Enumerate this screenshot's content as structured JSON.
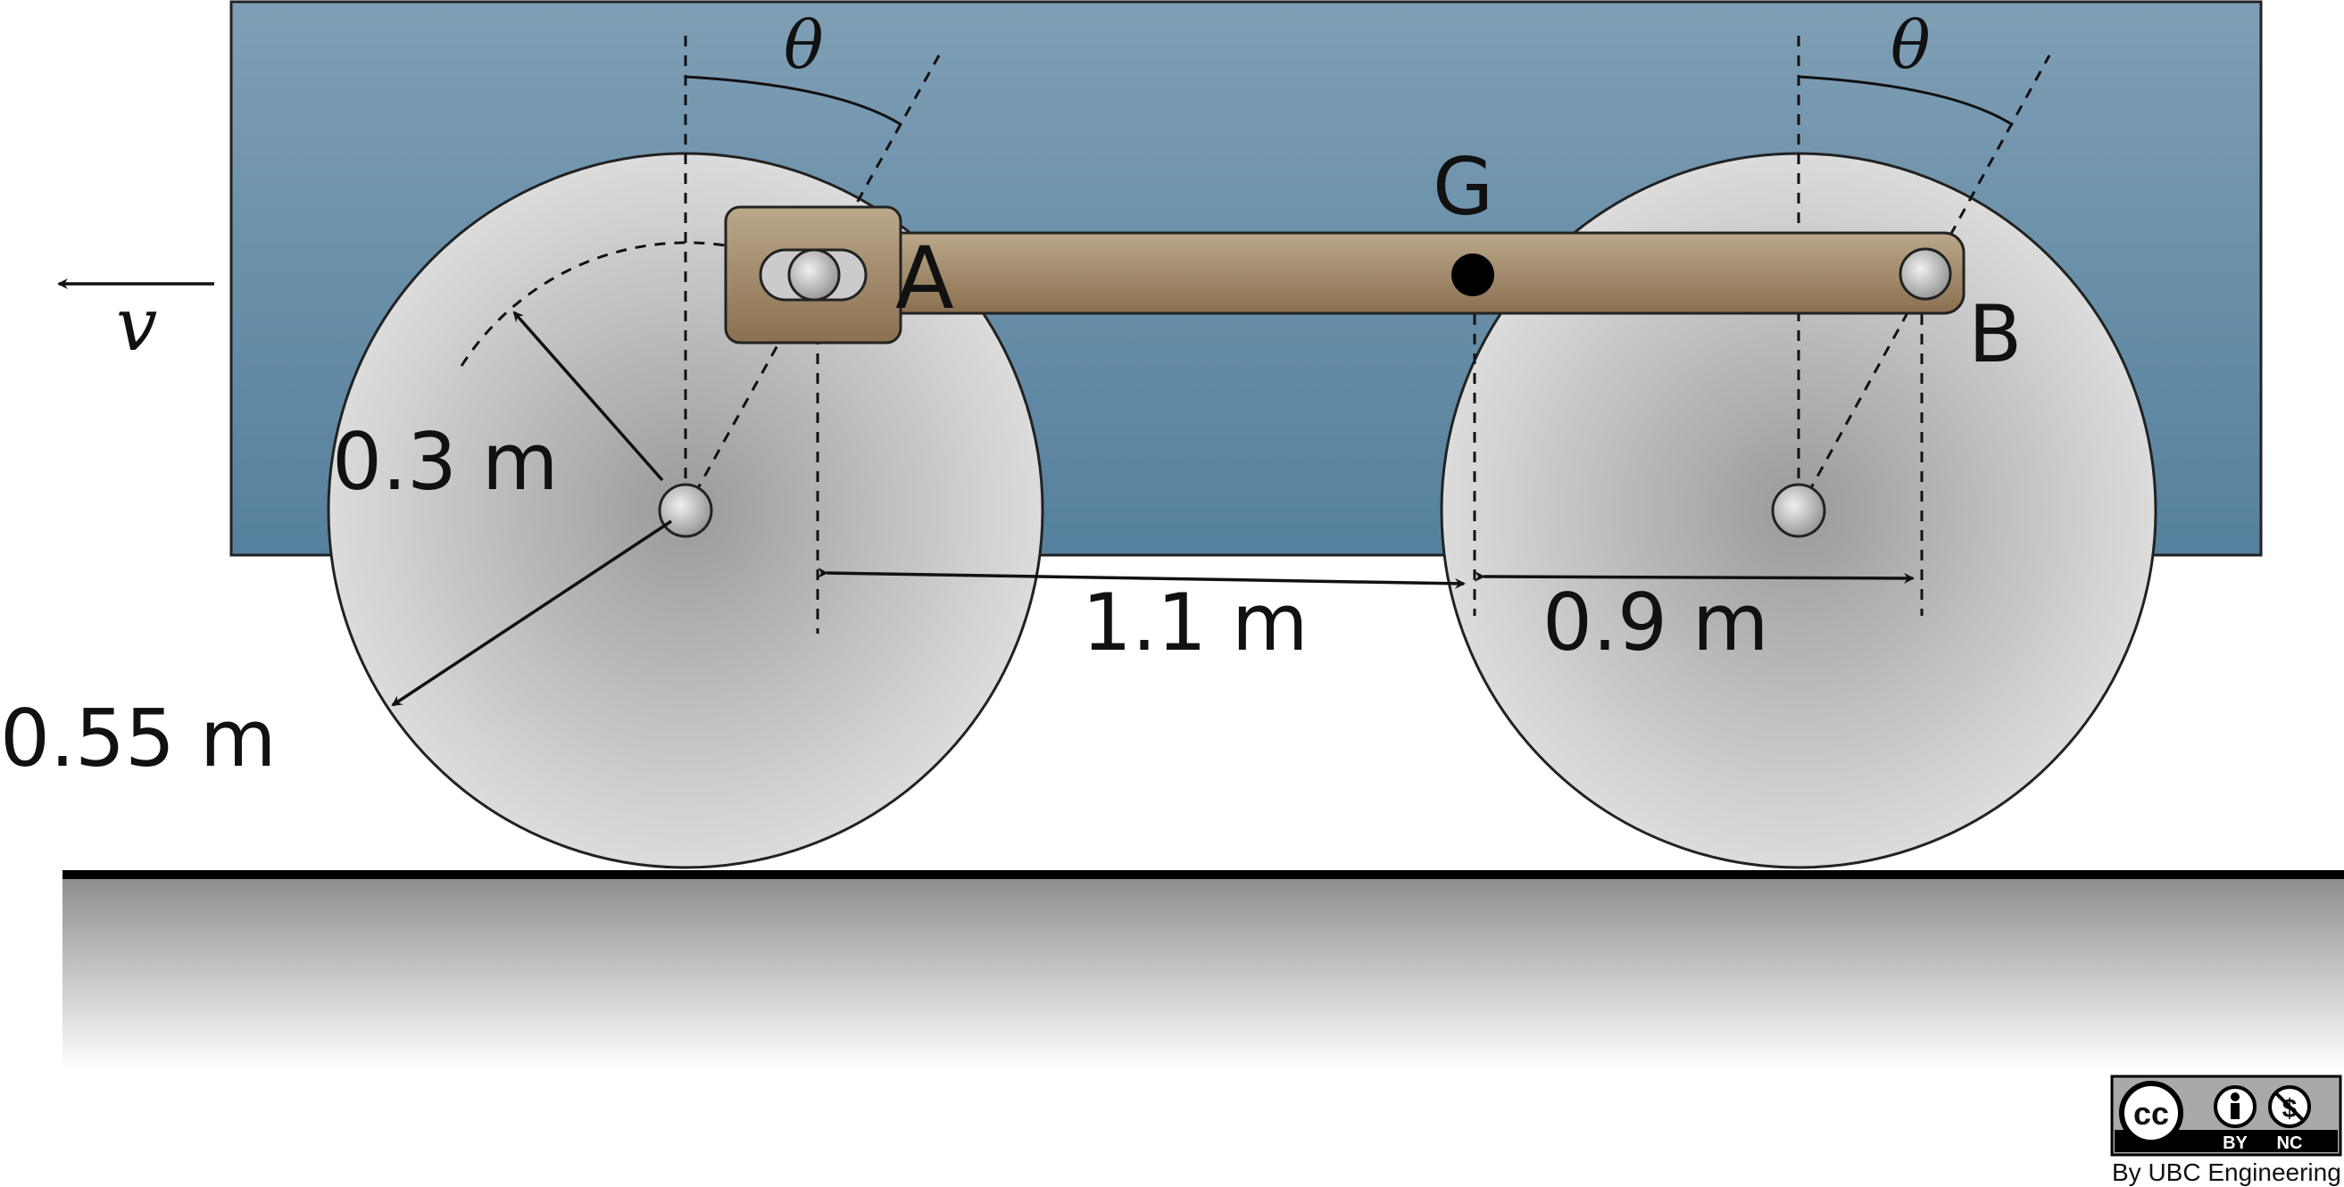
{
  "labels": {
    "theta_left": "θ",
    "theta_right": "θ",
    "point_g": "G",
    "point_a": "A",
    "point_b": "B",
    "velocity": "v",
    "crank_radius": "0.3 m",
    "wheel_radius": "0.55 m",
    "span_left": "1.1 m",
    "span_right": "0.9 m"
  },
  "license": {
    "cc_glyph": "cc",
    "by_glyph": "BY",
    "nc_glyph": "NC",
    "credit": "By UBC Engineering"
  },
  "icons": [
    "creative-commons-icon",
    "attribution-icon",
    "non-commercial-icon",
    "velocity-arrow-icon"
  ],
  "colors": {
    "body_top": "#7f9fb5",
    "body_bottom": "#55809d",
    "wheel_center": "#9a9a9a",
    "wheel_edge": "#dcdcdc",
    "rod_light": "#bba88a",
    "rod_dark": "#8a7050",
    "ground": "#000000"
  }
}
